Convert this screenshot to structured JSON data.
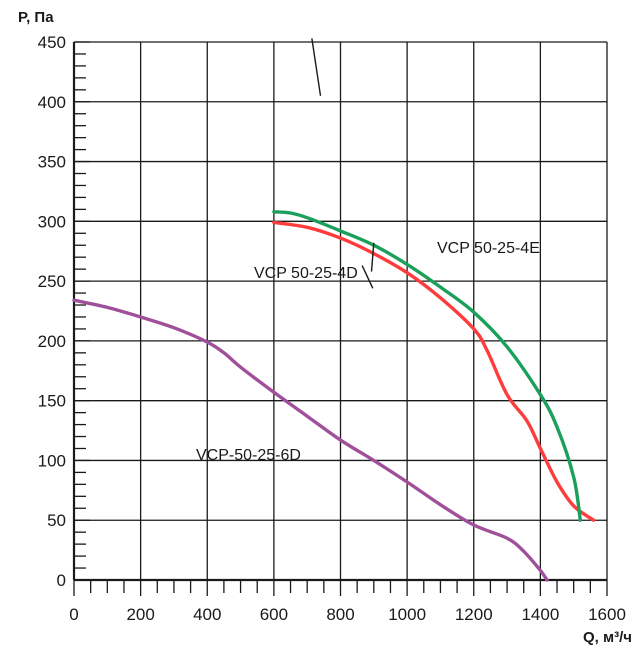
{
  "chart_data": {
    "type": "line",
    "xlabel": "Q, м³/ч",
    "ylabel": "P, Па",
    "xlim": [
      0,
      1600
    ],
    "ylim": [
      0,
      450
    ],
    "x_ticks": [
      0,
      200,
      400,
      600,
      800,
      1000,
      1200,
      1400,
      1600
    ],
    "y_ticks": [
      0,
      50,
      100,
      150,
      200,
      250,
      300,
      350,
      400,
      450
    ],
    "grid": true,
    "series": [
      {
        "name": "VCP 50-25-4E",
        "color": "#1aa05a",
        "x": [
          600,
          650,
          700,
          800,
          900,
          1000,
          1100,
          1200,
          1300,
          1400,
          1450,
          1500,
          1520
        ],
        "y": [
          308,
          307,
          303,
          292,
          280,
          264,
          245,
          224,
          195,
          155,
          128,
          86,
          50
        ]
      },
      {
        "name": "VCP 50-25-4D",
        "color": "#ff3c3c",
        "x": [
          600,
          700,
          800,
          900,
          1000,
          1100,
          1200,
          1240,
          1300,
          1360,
          1400,
          1450,
          1500,
          1560
        ],
        "y": [
          299,
          295,
          286,
          273,
          257,
          236,
          210,
          192,
          155,
          133,
          110,
          82,
          62,
          50
        ]
      },
      {
        "name": "VCP-50-25-6D",
        "color": "#a0509a",
        "x": [
          0,
          100,
          200,
          300,
          400,
          450,
          500,
          600,
          700,
          800,
          900,
          1000,
          1100,
          1200,
          1300,
          1350,
          1400,
          1420
        ],
        "y": [
          234,
          228,
          220,
          211,
          199,
          190,
          178,
          157,
          137,
          117,
          100,
          82,
          63,
          46,
          35,
          24,
          8,
          0
        ]
      }
    ]
  }
}
